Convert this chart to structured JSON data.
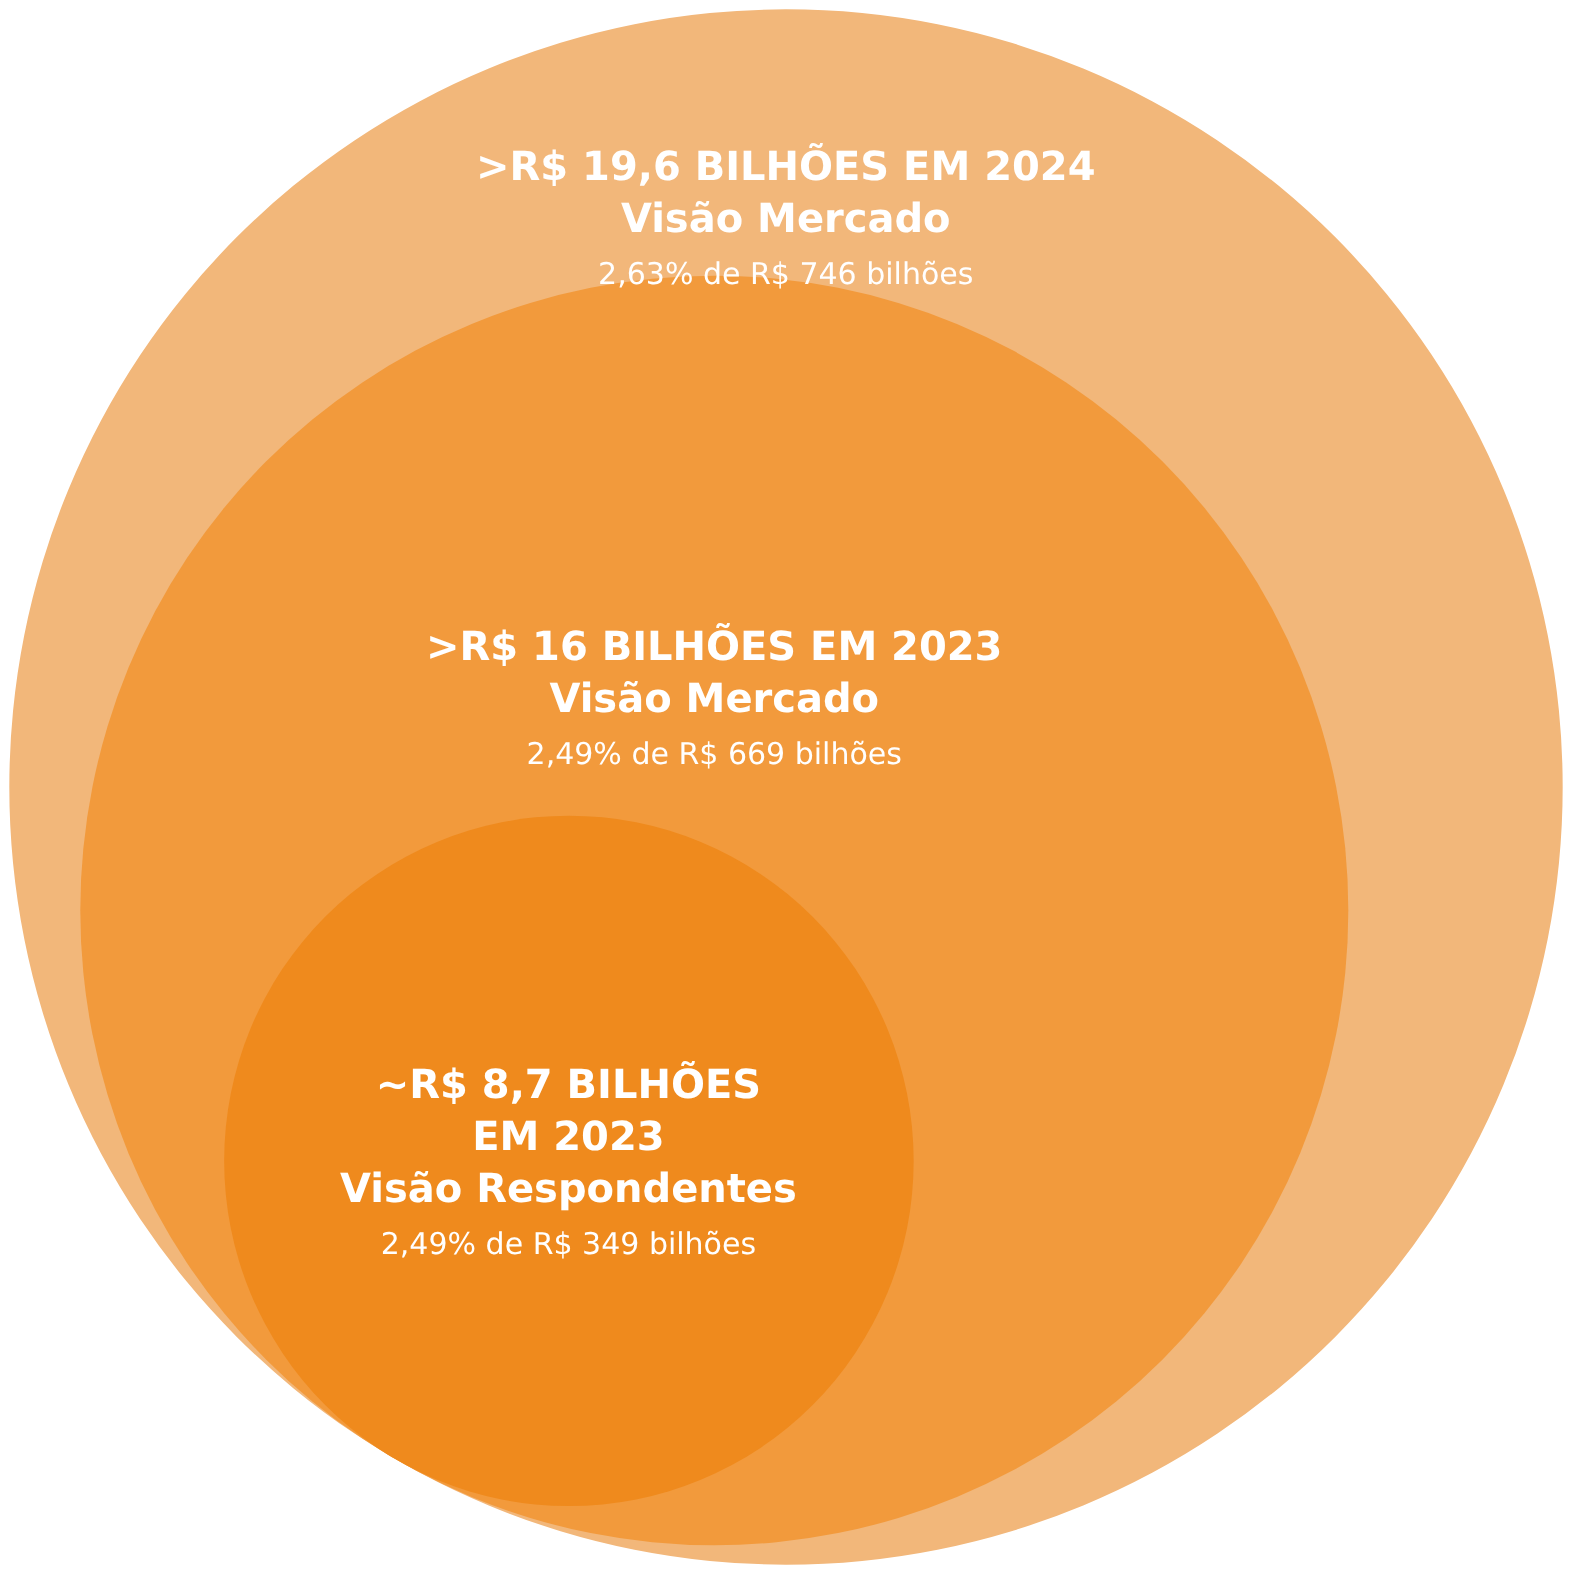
{
  "chart_data": {
    "type": "other",
    "categories": [
      "Visão Mercado",
      "Visão Mercado",
      "Visão Respondentes"
    ],
    "values": [
      19.6,
      16,
      8.7
    ],
    "value_labels": [
      ">R$ 19,6 BILHÕES EM 2024",
      ">R$ 16 BILHÕES EM 2023",
      "~R$ 8,7 BILHÕES EM 2023"
    ],
    "colors": [
      "#f2b77a",
      "#f29a3c",
      "#ef8a1d"
    ],
    "annotations": [
      "2,63% de R$ 746 bilhões",
      "2,49% de R$ 669 bilhões",
      "2,49% de R$ 349 bilhões"
    ]
  }
}
